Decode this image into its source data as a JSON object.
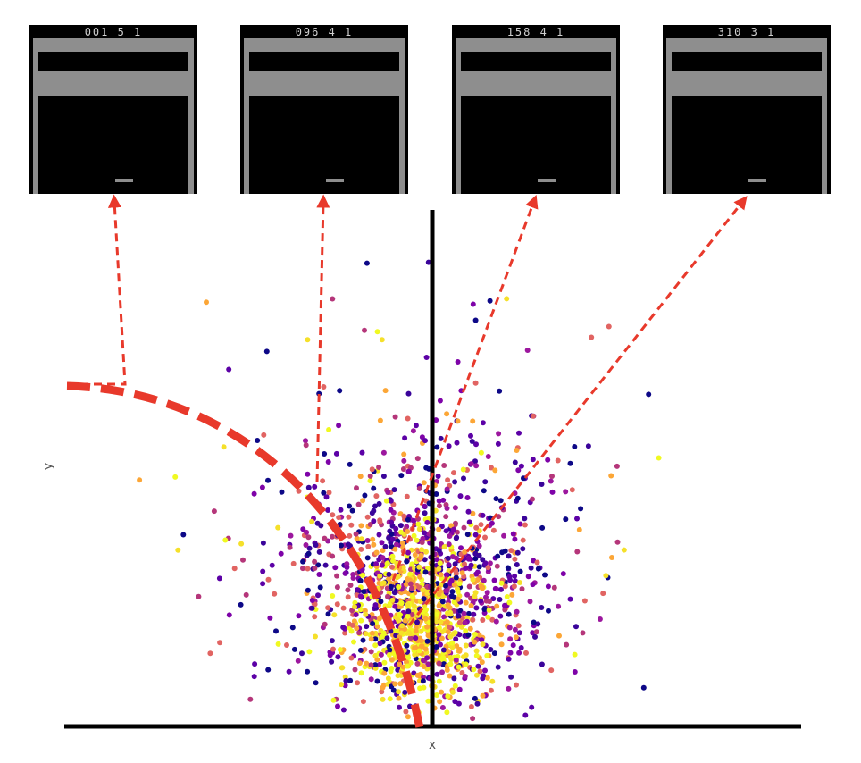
{
  "axes": {
    "x_label": "x",
    "y_label": "y"
  },
  "panels": [
    {
      "score": "001 5 1"
    },
    {
      "score": "096 4 1"
    },
    {
      "score": "158 4 1"
    },
    {
      "score": "310 3 1"
    }
  ]
}
